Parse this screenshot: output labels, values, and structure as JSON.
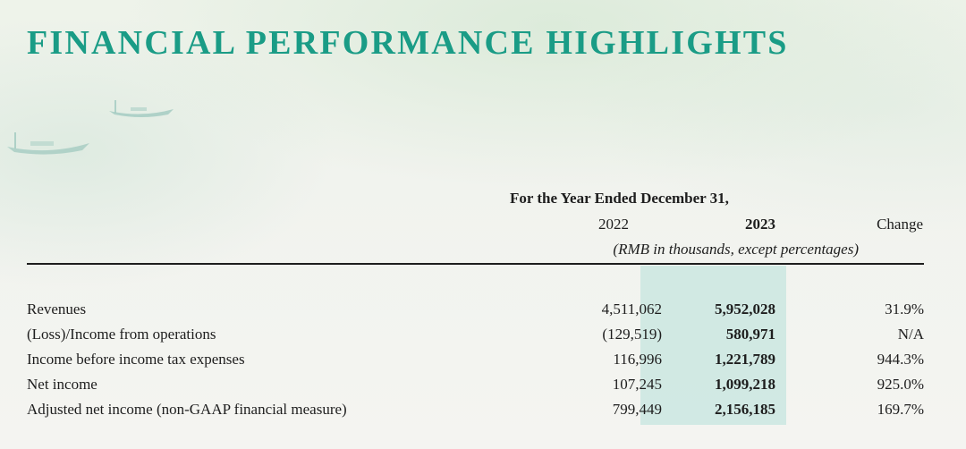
{
  "title": "FINANCIAL PERFORMANCE HIGHLIGHTS",
  "table": {
    "period_caption": "For the Year Ended December 31,",
    "col_2022": "2022",
    "col_2023": "2023",
    "col_change": "Change",
    "units_note": "(RMB in thousands, except percentages)",
    "rows": [
      {
        "label": "Revenues",
        "v2022": "4,511,062",
        "v2023": "5,952,028",
        "change": "31.9%"
      },
      {
        "label": "(Loss)/Income from operations",
        "v2022": "(129,519)",
        "v2023": "580,971",
        "change": "N/A"
      },
      {
        "label": "Income before income tax expenses",
        "v2022": "116,996",
        "v2023": "1,221,789",
        "change": "944.3%"
      },
      {
        "label": "Net income",
        "v2022": "107,245",
        "v2023": "1,099,218",
        "change": "925.0%"
      },
      {
        "label": "Adjusted net income (non-GAAP financial measure)",
        "v2022": "799,449",
        "v2023": "2,156,185",
        "change": "169.7%"
      }
    ]
  },
  "colors": {
    "title": "#1a9c86",
    "highlight": "#c6e5df",
    "text": "#1e1e1e"
  },
  "decorations": [
    "boat-icon",
    "boat-icon"
  ]
}
